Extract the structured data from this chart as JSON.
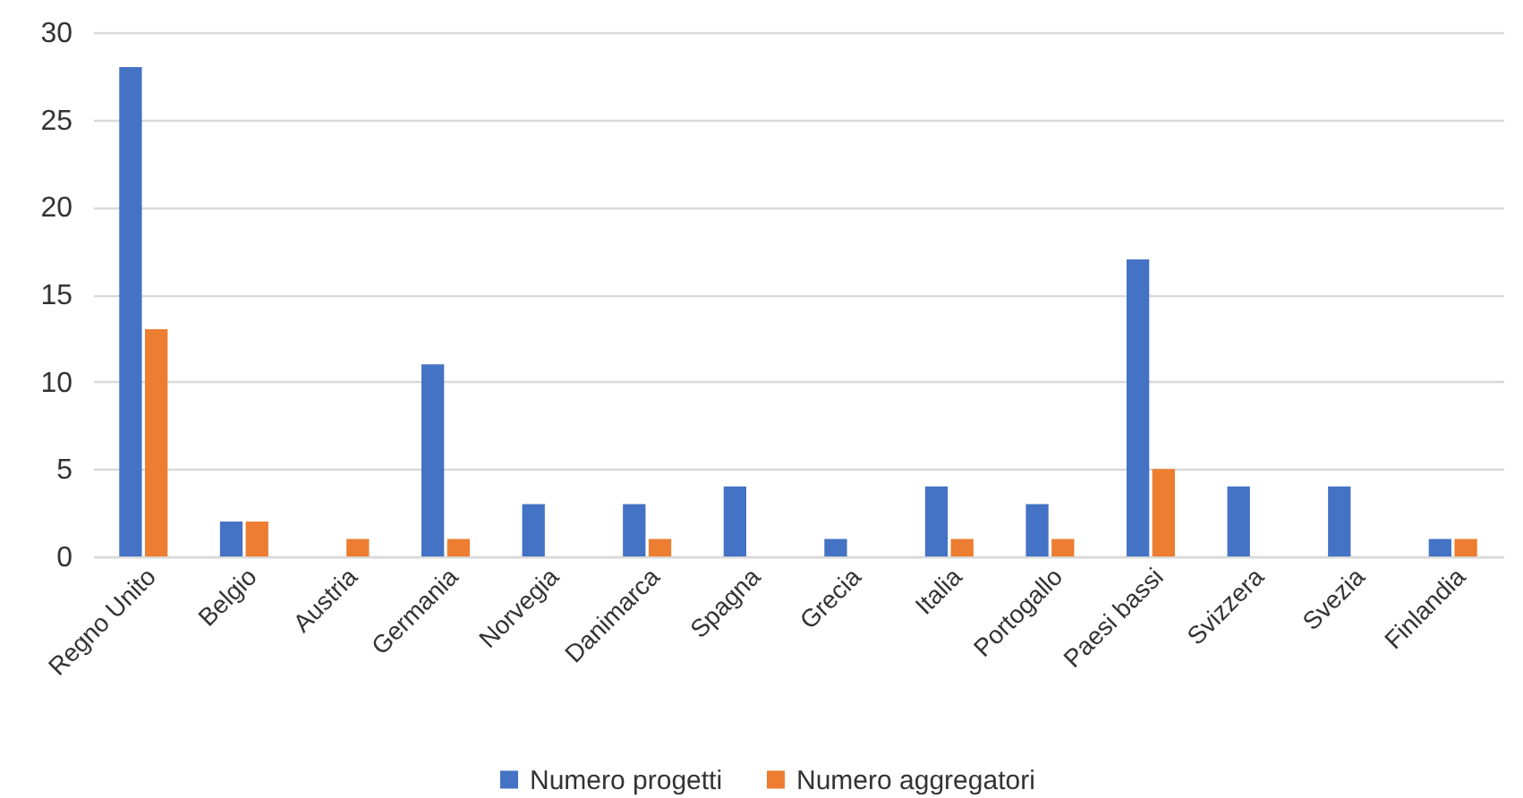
{
  "chart_data": {
    "type": "bar",
    "categories": [
      "Regno Unito",
      "Belgio",
      "Austria",
      "Germania",
      "Norvegia",
      "Danimarca",
      "Spagna",
      "Grecia",
      "Italia",
      "Portogallo",
      "Paesi bassi",
      "Svizzera",
      "Svezia",
      "Finlandia"
    ],
    "series": [
      {
        "name": "Numero progetti",
        "color": "#4472c4",
        "values": [
          28,
          2,
          0,
          11,
          3,
          3,
          4,
          1,
          4,
          3,
          17,
          4,
          4,
          1
        ]
      },
      {
        "name": "Numero aggregatori",
        "color": "#ed7d31",
        "values": [
          13,
          2,
          1,
          1,
          0,
          1,
          0,
          0,
          1,
          1,
          5,
          0,
          0,
          1
        ]
      }
    ],
    "ylim": [
      0,
      30
    ],
    "yticks": [
      0,
      5,
      10,
      15,
      20,
      25,
      30
    ],
    "grid": "y",
    "legend": "bottom"
  }
}
